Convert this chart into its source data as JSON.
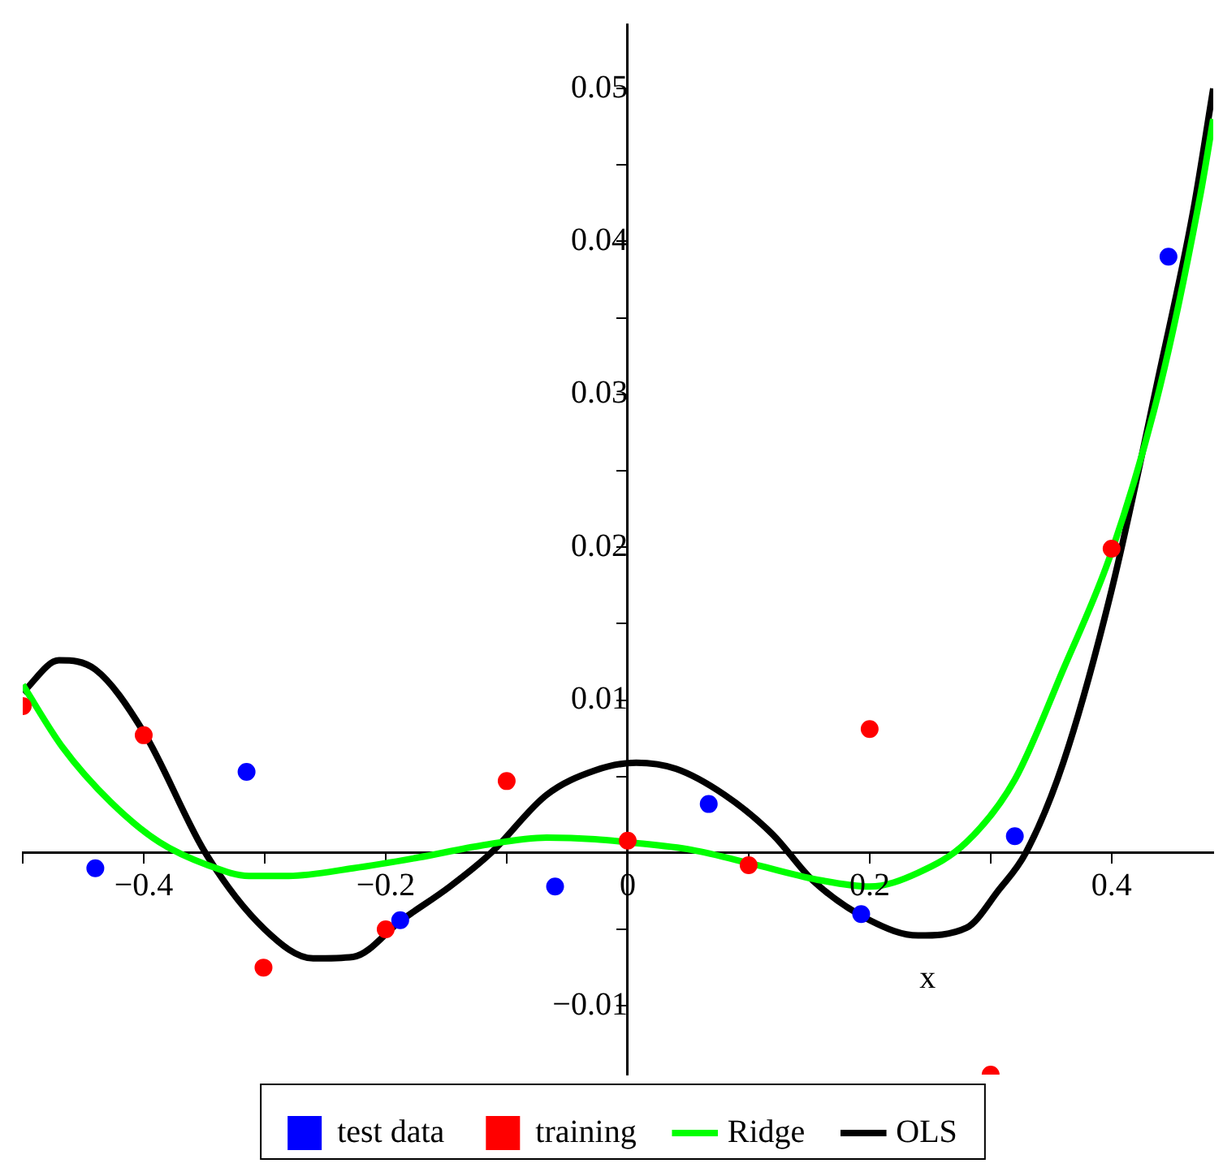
{
  "chart_data": {
    "type": "scatter",
    "xlabel": "x",
    "xlim": [
      -0.5,
      0.484
    ],
    "ylim": [
      -0.0145,
      0.0542
    ],
    "xticks": [
      {
        "value": -0.5,
        "label": null
      },
      {
        "value": -0.4,
        "label": "−0.4"
      },
      {
        "value": -0.3,
        "label": null
      },
      {
        "value": -0.2,
        "label": "−0.2"
      },
      {
        "value": -0.1,
        "label": null
      },
      0,
      {
        "value": 0.1,
        "label": null
      },
      0.2,
      {
        "value": 0.3,
        "label": null
      },
      0.4
    ],
    "yticks": [
      {
        "value": -0.01,
        "label": "−0.01"
      },
      {
        "value": -0.005,
        "label": null
      },
      {
        "value": 0.005,
        "label": null
      },
      0.01,
      {
        "value": 0.015,
        "label": null
      },
      0.02,
      {
        "value": 0.025,
        "label": null
      },
      0.03,
      {
        "value": 0.035,
        "label": null
      },
      0.04,
      {
        "value": 0.045,
        "label": null
      },
      0.05
    ],
    "legend": "bottom",
    "grid": false,
    "series": [
      {
        "name": "test data",
        "marker": "circle",
        "color": "#0000ff",
        "x": [
          -0.44,
          -0.315,
          -0.188,
          -0.06,
          0.067,
          0.193,
          0.32,
          0.447
        ],
        "values": [
          -0.001,
          0.0053,
          -0.0044,
          -0.0022,
          0.0032,
          -0.004,
          0.0011,
          0.039
        ]
      },
      {
        "name": "training",
        "marker": "circle",
        "color": "#ff0000",
        "x": [
          -0.5,
          -0.4,
          -0.301,
          -0.2,
          -0.1,
          0,
          0.1,
          0.2,
          0.3,
          0.4
        ],
        "values": [
          0.0096,
          0.0077,
          -0.0075,
          -0.005,
          0.0047,
          0.0008,
          -0.0008,
          0.0081,
          -0.0145,
          0.0199
        ]
      },
      {
        "name": "Ridge",
        "type": "line",
        "marker": "none",
        "color": "#00ff00",
        "x": [
          -0.5,
          -0.467,
          -0.427,
          -0.387,
          -0.347,
          -0.313,
          -0.28,
          -0.227,
          -0.173,
          -0.12,
          -0.067,
          -0.027,
          0,
          0.053,
          0.107,
          0.16,
          0.2,
          0.24,
          0.28,
          0.32,
          0.36,
          0.4,
          0.44,
          0.473,
          0.484
        ],
        "values": [
          0.011,
          0.0069,
          0.0033,
          0.0007,
          -0.0008,
          -0.0015,
          -0.0015,
          -0.001,
          -0.0003,
          0.0005,
          0.001,
          0.0009,
          0.0007,
          0.0002,
          -0.0008,
          -0.0018,
          -0.0022,
          -0.0013,
          0.0007,
          0.0048,
          0.012,
          0.0197,
          0.0305,
          0.0429,
          0.048
        ]
      },
      {
        "name": "OLS",
        "type": "line",
        "marker": "none",
        "color": "#000000",
        "x": [
          -0.5,
          -0.47,
          -0.44,
          -0.4,
          -0.349,
          -0.3,
          -0.26,
          -0.227,
          -0.187,
          -0.147,
          -0.113,
          -0.067,
          -0.027,
          0.007,
          0.04,
          0.08,
          0.12,
          0.153,
          0.2,
          0.24,
          0.28,
          0.307,
          0.329,
          0.36,
          0.4,
          0.44,
          0.467,
          0.484
        ],
        "values": [
          0.0105,
          0.0126,
          0.012,
          0.0079,
          0,
          -0.005,
          -0.0069,
          -0.0068,
          -0.0044,
          -0.0022,
          0,
          0.0038,
          0.0054,
          0.0059,
          0.0055,
          0.0038,
          0.0012,
          -0.0018,
          -0.0044,
          -0.0054,
          -0.0049,
          -0.0024,
          0,
          0.0059,
          0.0172,
          0.0316,
          0.0418,
          0.05
        ]
      }
    ]
  }
}
